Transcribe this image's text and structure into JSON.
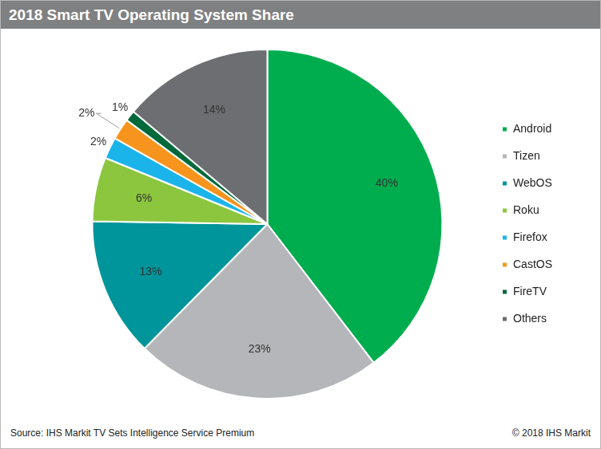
{
  "chart_data": {
    "type": "pie",
    "title": "2018 Smart TV Operating System Share",
    "categories": [
      "Android",
      "Tizen",
      "WebOS",
      "Roku",
      "Firefox",
      "CastOS",
      "FireTV",
      "Others"
    ],
    "values": [
      40,
      23,
      13,
      6,
      2,
      2,
      1,
      14
    ],
    "value_labels": [
      "40%",
      "23%",
      "13%",
      "6%",
      "2%",
      "2%",
      "1%",
      "14%"
    ],
    "colors": [
      "#00ad4e",
      "#b4b6b9",
      "#00959a",
      "#8cc63f",
      "#1bb4ea",
      "#f7941d",
      "#00693a",
      "#6d6e71"
    ],
    "legend": "right",
    "data_labels": true
  },
  "source": "Source: IHS Markit TV Sets Intelligence Service Premium",
  "copyright": "© 2018 IHS Markit"
}
